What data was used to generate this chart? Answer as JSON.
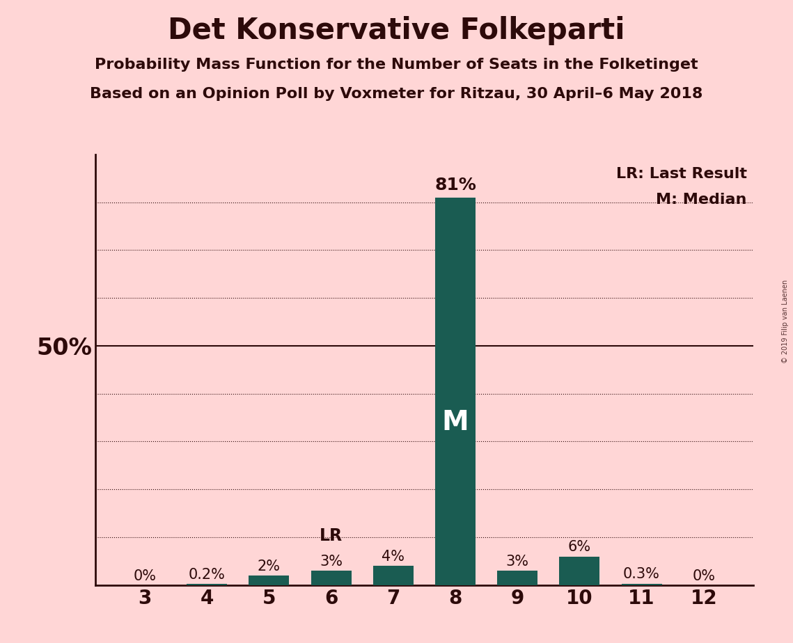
{
  "title": "Det Konservative Folkeparti",
  "subtitle1": "Probability Mass Function for the Number of Seats in the Folketinget",
  "subtitle2": "Based on an Opinion Poll by Voxmeter for Ritzau, 30 April–6 May 2018",
  "watermark": "© 2019 Filip van Laenen",
  "categories": [
    3,
    4,
    5,
    6,
    7,
    8,
    9,
    10,
    11,
    12
  ],
  "values": [
    0.0,
    0.2,
    2.0,
    3.0,
    4.0,
    81.0,
    3.0,
    6.0,
    0.3,
    0.0
  ],
  "labels": [
    "0%",
    "0.2%",
    "2%",
    "3%",
    "4%",
    "81%",
    "3%",
    "6%",
    "0.3%",
    "0%"
  ],
  "bar_color": "#1a5c52",
  "background_color": "#ffd6d6",
  "text_color": "#2d0a0a",
  "median_seat": 8,
  "last_result_seat": 6,
  "ylim_max": 90,
  "grid_lines": [
    10,
    20,
    30,
    40,
    50,
    60,
    70,
    80
  ],
  "ylabel_50": "50%",
  "legend_lr": "LR: Last Result",
  "legend_m": "M: Median",
  "title_fontsize": 30,
  "subtitle_fontsize": 16,
  "axis_tick_fontsize": 20,
  "label_fontsize": 15,
  "bar_label_big_fontsize": 18,
  "bar_width": 0.65,
  "xlim_left": 2.2,
  "xlim_right": 12.8
}
